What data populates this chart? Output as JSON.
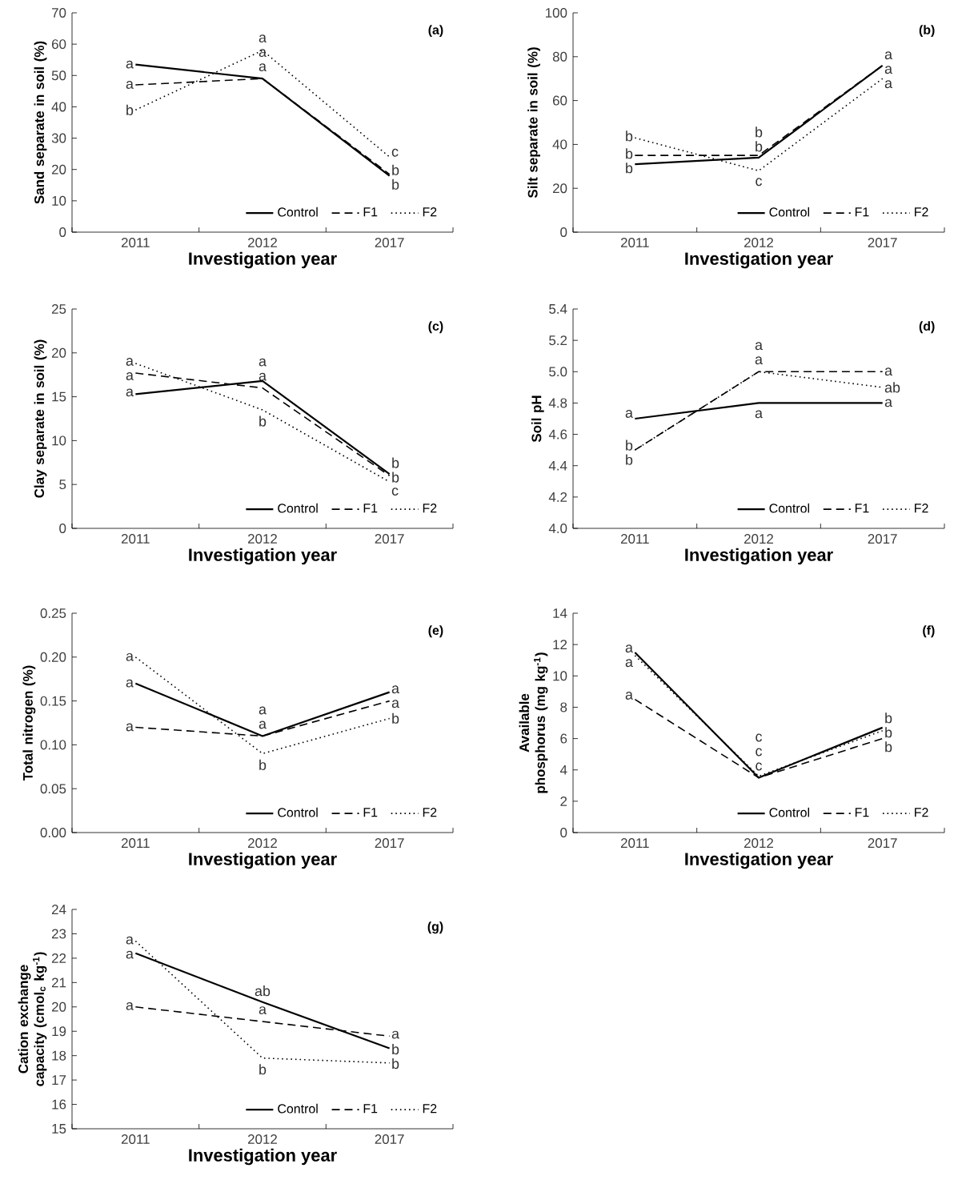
{
  "chart_data": [
    {
      "type": "line",
      "xlabel": "Investigation year",
      "ylabel": "Sand separate in soil (%)",
      "categories": [
        "2011",
        "2012",
        "2017"
      ],
      "ylim": [
        0,
        70
      ],
      "yticks": [
        0,
        10,
        20,
        30,
        40,
        50,
        60,
        70
      ],
      "legend": "bottom right",
      "marker": "none",
      "series": [
        {
          "name": "Control",
          "color": "#000000",
          "line_style": "solid",
          "values": [
            53.5,
            49,
            18
          ]
        },
        {
          "name": "F1",
          "color": "#000000",
          "line_style": "dashed",
          "values": [
            47,
            49,
            18.5
          ]
        },
        {
          "name": "F2",
          "color": "#000000",
          "line_style": "dotted",
          "values": [
            39,
            58,
            24
          ]
        }
      ],
      "annotations": [
        "(a)",
        {
          "text": "a",
          "x": "2011",
          "y": 53.5
        },
        {
          "text": "a",
          "x": "2011",
          "y": 47
        },
        {
          "text": "b",
          "x": "2011",
          "y": 39
        },
        {
          "text": "a",
          "x": "2012",
          "y": 58
        },
        {
          "text": "a",
          "x": "2012",
          "y": 49
        },
        {
          "text": "a",
          "x": "2012",
          "y": 49
        },
        {
          "text": "c",
          "x": "2017",
          "y": 24
        },
        {
          "text": "b",
          "x": "2017",
          "y": 18.5
        },
        {
          "text": "b",
          "x": "2017",
          "y": 18
        }
      ]
    },
    {
      "type": "line",
      "xlabel": "Investigation year",
      "ylabel": "Silt separate in soil (%)",
      "categories": [
        "2011",
        "2012",
        "2017"
      ],
      "ylim": [
        0,
        100
      ],
      "yticks": [
        0,
        20,
        40,
        60,
        80,
        100
      ],
      "legend": "bottom right",
      "marker": "none",
      "series": [
        {
          "name": "Control",
          "color": "#000000",
          "line_style": "solid",
          "values": [
            31,
            34,
            76
          ]
        },
        {
          "name": "F1",
          "color": "#000000",
          "line_style": "dashed",
          "values": [
            35,
            35,
            76
          ]
        },
        {
          "name": "F2",
          "color": "#000000",
          "line_style": "dotted",
          "values": [
            43,
            28,
            70
          ]
        }
      ],
      "annotations": [
        "(b)",
        {
          "text": "b",
          "x": "2011",
          "y": 43
        },
        {
          "text": "b",
          "x": "2011",
          "y": 35
        },
        {
          "text": "b",
          "x": "2011",
          "y": 31
        },
        {
          "text": "b",
          "x": "2012",
          "y": 35
        },
        {
          "text": "b",
          "x": "2012",
          "y": 34
        },
        {
          "text": "c",
          "x": "2012",
          "y": 28
        },
        {
          "text": "a",
          "x": "2017",
          "y": 76
        },
        {
          "text": "a",
          "x": "2017",
          "y": 76
        },
        {
          "text": "a",
          "x": "2017",
          "y": 70
        }
      ]
    },
    {
      "type": "line",
      "xlabel": "Investigation year",
      "ylabel": "Clay separate in soil (%)",
      "categories": [
        "2011",
        "2012",
        "2017"
      ],
      "ylim": [
        0,
        25
      ],
      "yticks": [
        0,
        5,
        10,
        15,
        20,
        25
      ],
      "legend": "bottom right",
      "marker": "none",
      "series": [
        {
          "name": "Control",
          "color": "#000000",
          "line_style": "solid",
          "values": [
            15.3,
            16.8,
            6.2
          ]
        },
        {
          "name": "F1",
          "color": "#000000",
          "line_style": "dashed",
          "values": [
            17.7,
            16,
            6
          ]
        },
        {
          "name": "F2",
          "color": "#000000",
          "line_style": "dotted",
          "values": [
            18.8,
            13.5,
            5.3
          ]
        }
      ],
      "annotations": [
        "(c)",
        {
          "text": "a",
          "x": "2011",
          "y": 18.8
        },
        {
          "text": "a",
          "x": "2011",
          "y": 17.7
        },
        {
          "text": "a",
          "x": "2011",
          "y": 15.3
        },
        {
          "text": "a",
          "x": "2012",
          "y": 16.8
        },
        {
          "text": "a",
          "x": "2012",
          "y": 16
        },
        {
          "text": "b",
          "x": "2012",
          "y": 13.5
        },
        {
          "text": "b",
          "x": "2017",
          "y": 6.2
        },
        {
          "text": "b",
          "x": "2017",
          "y": 6
        },
        {
          "text": "c",
          "x": "2017",
          "y": 5.3
        }
      ]
    },
    {
      "type": "line",
      "xlabel": "Investigation year",
      "ylabel": "Soil pH",
      "categories": [
        "2011",
        "2012",
        "2017"
      ],
      "ylim": [
        4.0,
        5.4
      ],
      "yticks": [
        {
          "value": 4.0,
          "label": "4.0"
        },
        4.2,
        4.4,
        4.6,
        4.8,
        {
          "value": 5.0,
          "label": "5.0"
        },
        5.2,
        5.4
      ],
      "legend": "bottom right",
      "marker": "none",
      "series": [
        {
          "name": "Control",
          "color": "#000000",
          "line_style": "solid",
          "values": [
            4.7,
            4.8,
            4.8
          ]
        },
        {
          "name": "F1",
          "color": "#000000",
          "line_style": "dashed",
          "values": [
            4.5,
            5.0,
            5.0
          ]
        },
        {
          "name": "F2",
          "color": "#000000",
          "line_style": "dotted",
          "values": [
            4.5,
            5.0,
            4.9
          ]
        }
      ],
      "annotations": [
        "(d)",
        {
          "text": "a",
          "x": "2011",
          "y": 4.7
        },
        {
          "text": "b",
          "x": "2011",
          "y": 4.5
        },
        {
          "text": "b",
          "x": "2011",
          "y": 4.5
        },
        {
          "text": "a",
          "x": "2012",
          "y": 5.0
        },
        {
          "text": "a",
          "x": "2012",
          "y": 5.0
        },
        {
          "text": "a",
          "x": "2012",
          "y": 4.8
        },
        {
          "text": "a",
          "x": "2017",
          "y": 5.0
        },
        {
          "text": "ab",
          "x": "2017",
          "y": 4.9
        },
        {
          "text": "a",
          "x": "2017",
          "y": 4.8
        }
      ]
    },
    {
      "type": "line",
      "xlabel": "Investigation year",
      "ylabel": "Total nitrogen (%)",
      "categories": [
        "2011",
        "2012",
        "2017"
      ],
      "ylim": [
        0,
        0.25
      ],
      "yticks": [
        {
          "value": 0,
          "label": "0.00"
        },
        0.05,
        {
          "value": 0.1,
          "label": "0.10"
        },
        0.15,
        {
          "value": 0.2,
          "label": "0.20"
        },
        0.25
      ],
      "legend": "bottom right",
      "marker": "none",
      "series": [
        {
          "name": "Control",
          "color": "#000000",
          "line_style": "solid",
          "values": [
            0.17,
            0.11,
            0.16
          ]
        },
        {
          "name": "F1",
          "color": "#000000",
          "line_style": "dashed",
          "values": [
            0.12,
            0.11,
            0.15
          ]
        },
        {
          "name": "F2",
          "color": "#000000",
          "line_style": "dotted",
          "values": [
            0.2,
            0.09,
            0.13
          ]
        }
      ],
      "annotations": [
        "(e)",
        {
          "text": "a",
          "x": "2011",
          "y": 0.2
        },
        {
          "text": "a",
          "x": "2011",
          "y": 0.17
        },
        {
          "text": "a",
          "x": "2011",
          "y": 0.12
        },
        {
          "text": "a",
          "x": "2012",
          "y": 0.11
        },
        {
          "text": "a",
          "x": "2012",
          "y": 0.11
        },
        {
          "text": "b",
          "x": "2012",
          "y": 0.09
        },
        {
          "text": "a",
          "x": "2017",
          "y": 0.16
        },
        {
          "text": "a",
          "x": "2017",
          "y": 0.15
        },
        {
          "text": "b",
          "x": "2017",
          "y": 0.13
        }
      ]
    },
    {
      "type": "line",
      "xlabel": "Investigation year",
      "ylabel": "Available phosphorus (mg kg$^{-1}$)",
      "categories": [
        "2011",
        "2012",
        "2017"
      ],
      "ylim": [
        0,
        14
      ],
      "yticks": [
        0,
        2,
        4,
        6,
        8,
        10,
        12,
        14
      ],
      "legend": "bottom right",
      "marker": "none",
      "series": [
        {
          "name": "Control",
          "color": "#000000",
          "line_style": "solid",
          "values": [
            11.5,
            3.5,
            6.7
          ]
        },
        {
          "name": "F1",
          "color": "#000000",
          "line_style": "dashed",
          "values": [
            8.5,
            3.5,
            6
          ]
        },
        {
          "name": "F2",
          "color": "#000000",
          "line_style": "dotted",
          "values": [
            11.3,
            3.6,
            6.5
          ]
        }
      ],
      "annotations": [
        "(f)",
        {
          "text": "a",
          "x": "2011",
          "y": 11.5
        },
        {
          "text": "a",
          "x": "2011",
          "y": 11.3
        },
        {
          "text": "a",
          "x": "2011",
          "y": 8.5
        },
        {
          "text": "c",
          "x": "2012",
          "y": 3.6
        },
        {
          "text": "c",
          "x": "2012",
          "y": 3.5
        },
        {
          "text": "c",
          "x": "2012",
          "y": 3.5
        },
        {
          "text": "b",
          "x": "2017",
          "y": 6.7
        },
        {
          "text": "b",
          "x": "2017",
          "y": 6.5
        },
        {
          "text": "b",
          "x": "2017",
          "y": 6
        }
      ]
    },
    {
      "type": "line",
      "xlabel": "Investigation year",
      "ylabel": "Cation exchange capacity (cmol$_{c}$ kg$^{-1}$)",
      "categories": [
        "2011",
        "2012",
        "2017"
      ],
      "ylim": [
        15,
        24
      ],
      "yticks": [
        15,
        16,
        17,
        18,
        19,
        20,
        21,
        22,
        23,
        24
      ],
      "legend": "bottom right",
      "marker": "none",
      "series": [
        {
          "name": "Control",
          "color": "#000000",
          "line_style": "solid",
          "values": [
            22.2,
            20.2,
            18.3
          ]
        },
        {
          "name": "F1",
          "color": "#000000",
          "line_style": "dashed",
          "values": [
            20,
            19.4,
            18.8
          ]
        },
        {
          "name": "F2",
          "color": "#000000",
          "line_style": "dotted",
          "values": [
            22.7,
            17.9,
            17.7
          ]
        }
      ],
      "annotations": [
        "(g)",
        {
          "text": "a",
          "x": "2011",
          "y": 22.7
        },
        {
          "text": "a",
          "x": "2011",
          "y": 22.2
        },
        {
          "text": "a",
          "x": "2011",
          "y": 20
        },
        {
          "text": "ab",
          "x": "2012",
          "y": 20.2
        },
        {
          "text": "a",
          "x": "2012",
          "y": 19.4
        },
        {
          "text": "b",
          "x": "2012",
          "y": 17.9
        },
        {
          "text": "a",
          "x": "2017",
          "y": 18.8
        },
        {
          "text": "b",
          "x": "2017",
          "y": 18.3
        },
        {
          "text": "b",
          "x": "2017",
          "y": 17.7
        }
      ]
    }
  ]
}
